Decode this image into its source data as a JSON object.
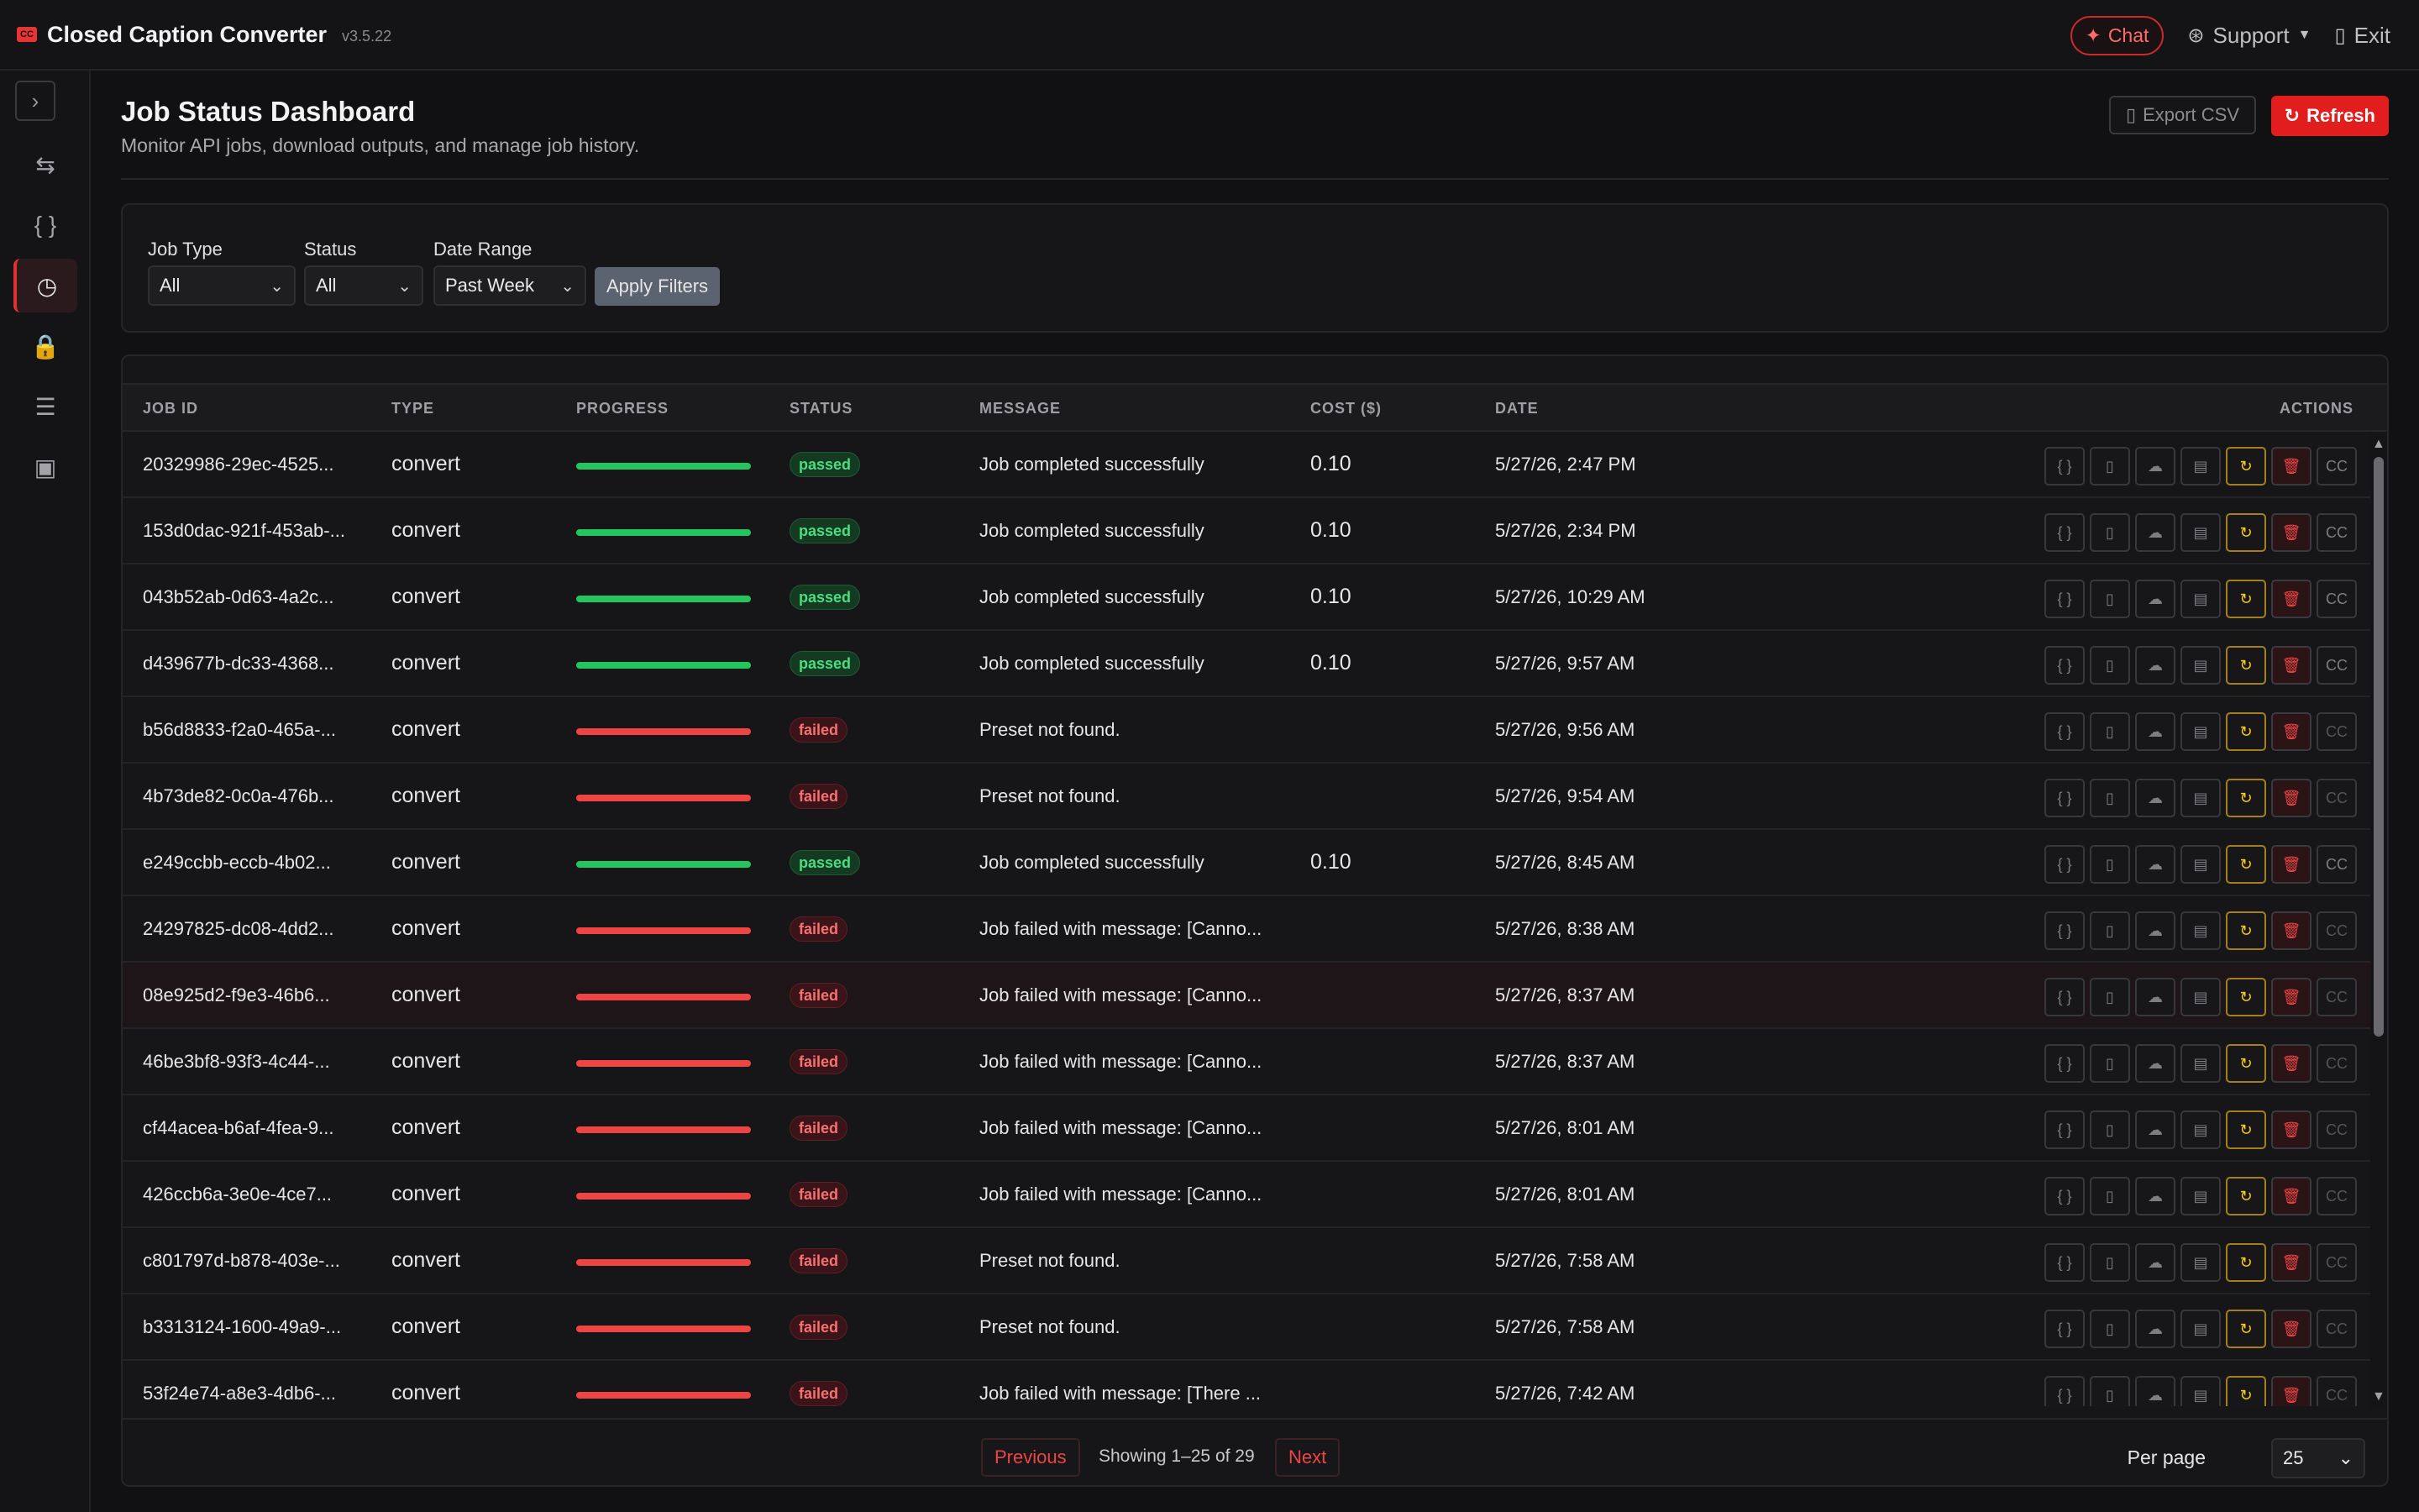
{
  "app": {
    "title": "Closed Caption Converter",
    "version": "v3.5.22",
    "logo_text": "CC",
    "chat_label": "Chat",
    "support_label": "Support",
    "exit_label": "Exit"
  },
  "sidebar": {
    "toggle_icon": "chevron-right-icon",
    "items": [
      {
        "icon": "swap-icon",
        "glyph": "⇆",
        "active": false
      },
      {
        "icon": "braces-icon",
        "glyph": "{ }",
        "active": false
      },
      {
        "icon": "clock-icon",
        "glyph": "◷",
        "active": true
      },
      {
        "icon": "lock-icon",
        "glyph": "🔒",
        "active": false
      },
      {
        "icon": "sliders-icon",
        "glyph": "☰",
        "active": false
      },
      {
        "icon": "contact-icon",
        "glyph": "▣",
        "active": false
      }
    ]
  },
  "page": {
    "title": "Job Status Dashboard",
    "subtitle": "Monitor API jobs, download outputs, and manage job history.",
    "export_label": "Export CSV",
    "refresh_label": "Refresh"
  },
  "filters": {
    "job_type_label": "Job Type",
    "job_type_value": "All",
    "status_label": "Status",
    "status_value": "All",
    "date_range_label": "Date Range",
    "date_range_value": "Past Week",
    "apply_label": "Apply Filters"
  },
  "table": {
    "headers": {
      "job_id": "JOB ID",
      "type": "TYPE",
      "progress": "PROGRESS",
      "status": "STATUS",
      "message": "MESSAGE",
      "cost": "COST ($)",
      "date": "DATE",
      "actions": "ACTIONS"
    },
    "rows": [
      {
        "id": "20329986-29ec-4525...",
        "type": "convert",
        "status": "passed",
        "message": "Job completed successfully",
        "cost": "0.10",
        "date": "5/27/26, 2:47 PM"
      },
      {
        "id": "153d0dac-921f-453ab-...",
        "type": "convert",
        "status": "passed",
        "message": "Job completed successfully",
        "cost": "0.10",
        "date": "5/27/26, 2:34 PM"
      },
      {
        "id": "043b52ab-0d63-4a2c...",
        "type": "convert",
        "status": "passed",
        "message": "Job completed successfully",
        "cost": "0.10",
        "date": "5/27/26, 10:29 AM"
      },
      {
        "id": "d439677b-dc33-4368...",
        "type": "convert",
        "status": "passed",
        "message": "Job completed successfully",
        "cost": "0.10",
        "date": "5/27/26, 9:57 AM"
      },
      {
        "id": "b56d8833-f2a0-465a-...",
        "type": "convert",
        "status": "failed",
        "message": "Preset not found.",
        "cost": "",
        "date": "5/27/26, 9:56 AM"
      },
      {
        "id": "4b73de82-0c0a-476b...",
        "type": "convert",
        "status": "failed",
        "message": "Preset not found.",
        "cost": "",
        "date": "5/27/26, 9:54 AM"
      },
      {
        "id": "e249ccbb-eccb-4b02...",
        "type": "convert",
        "status": "passed",
        "message": "Job completed successfully",
        "cost": "0.10",
        "date": "5/27/26, 8:45 AM"
      },
      {
        "id": "24297825-dc08-4dd2...",
        "type": "convert",
        "status": "failed",
        "message": "Job failed with message: [Canno...",
        "cost": "",
        "date": "5/27/26, 8:38 AM"
      },
      {
        "id": "08e925d2-f9e3-46b6...",
        "type": "convert",
        "status": "failed",
        "message": "Job failed with message: [Canno...",
        "cost": "",
        "date": "5/27/26, 8:37 AM"
      },
      {
        "id": "46be3bf8-93f3-4c44-...",
        "type": "convert",
        "status": "failed",
        "message": "Job failed with message: [Canno...",
        "cost": "",
        "date": "5/27/26, 8:37 AM"
      },
      {
        "id": "cf44acea-b6af-4fea-9...",
        "type": "convert",
        "status": "failed",
        "message": "Job failed with message: [Canno...",
        "cost": "",
        "date": "5/27/26, 8:01 AM"
      },
      {
        "id": "426ccb6a-3e0e-4ce7...",
        "type": "convert",
        "status": "failed",
        "message": "Job failed with message: [Canno...",
        "cost": "",
        "date": "5/27/26, 8:01 AM"
      },
      {
        "id": "c801797d-b878-403e-...",
        "type": "convert",
        "status": "failed",
        "message": "Preset not found.",
        "cost": "",
        "date": "5/27/26, 7:58 AM"
      },
      {
        "id": "b3313124-1600-49a9-...",
        "type": "convert",
        "status": "failed",
        "message": "Preset not found.",
        "cost": "",
        "date": "5/27/26, 7:58 AM"
      },
      {
        "id": "53f24e74-a8e3-4db6-...",
        "type": "convert",
        "status": "failed",
        "message": "Job failed with message: [There ...",
        "cost": "",
        "date": "5/27/26, 7:42 AM"
      }
    ],
    "highlighted_row": 8,
    "action_icons": [
      "braces-icon",
      "file-icon",
      "cloud-download-icon",
      "code-file-icon",
      "retry-icon",
      "trash-icon",
      "caption-icon"
    ]
  },
  "pagination": {
    "previous_label": "Previous",
    "info": "Showing 1–25 of 29",
    "next_label": "Next",
    "per_page_label": "Per page",
    "per_page_value": "25"
  },
  "colors": {
    "accent": "#e11d1d",
    "passed": "#22c55e",
    "failed": "#ef4444",
    "retry": "#facc15"
  }
}
